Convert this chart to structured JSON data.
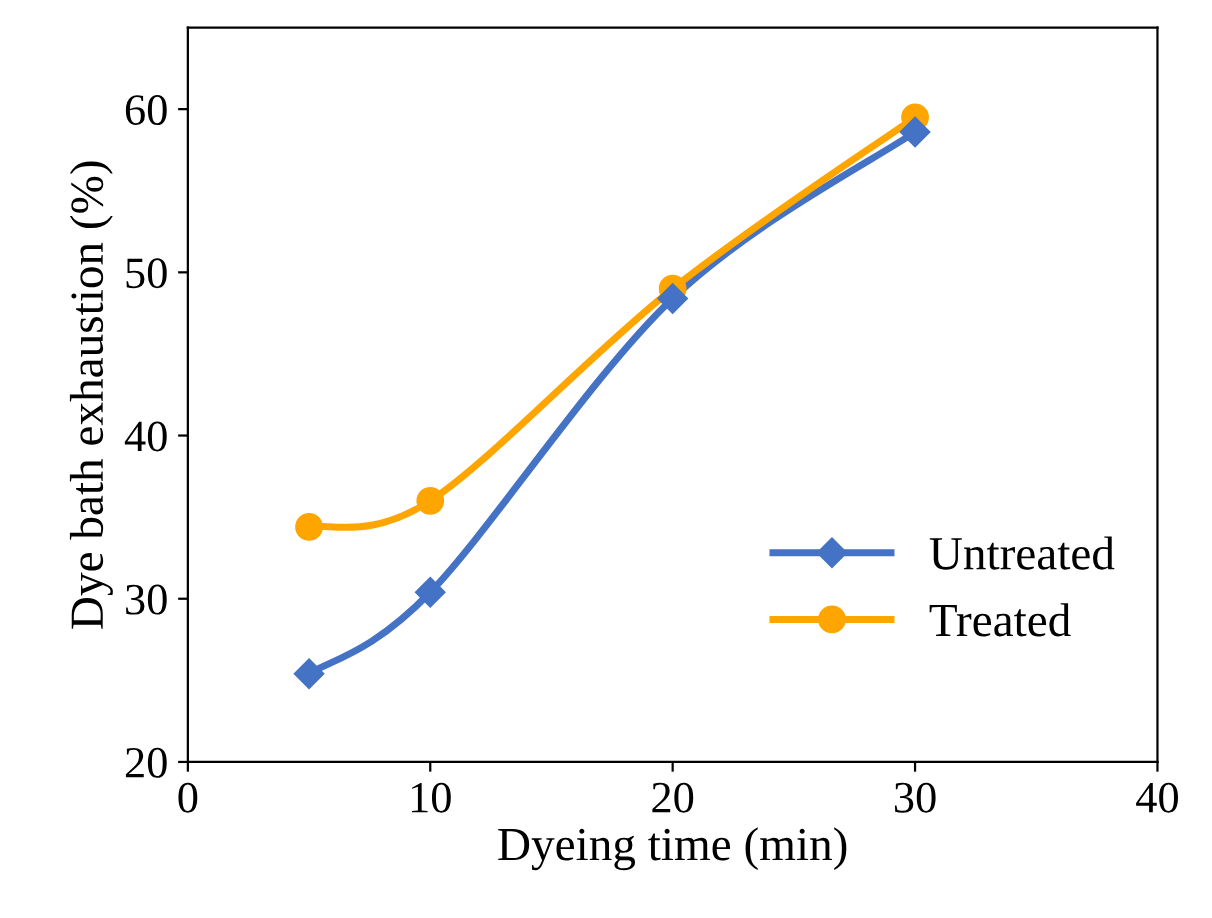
{
  "chart_data": {
    "type": "line",
    "xlabel": "Dyeing time (min)",
    "ylabel": "Dye bath exhaustion (%)",
    "x": [
      5,
      10,
      20,
      30
    ],
    "series": [
      {
        "name": "Untreated",
        "color": "#4472c4",
        "marker": "diamond",
        "values": [
          25.4,
          30.4,
          48.4,
          58.6
        ]
      },
      {
        "name": "Treated",
        "color": "#ffa500",
        "marker": "circle",
        "values": [
          34.4,
          36.0,
          49.0,
          59.5
        ]
      }
    ],
    "xlim": [
      0,
      40
    ],
    "xticks": [
      0,
      10,
      20,
      30,
      40
    ],
    "ylim": [
      20,
      65
    ],
    "yticks": [
      20,
      30,
      40,
      50,
      60
    ],
    "grid": false,
    "legend": "bottom right",
    "line_style": "solid"
  }
}
